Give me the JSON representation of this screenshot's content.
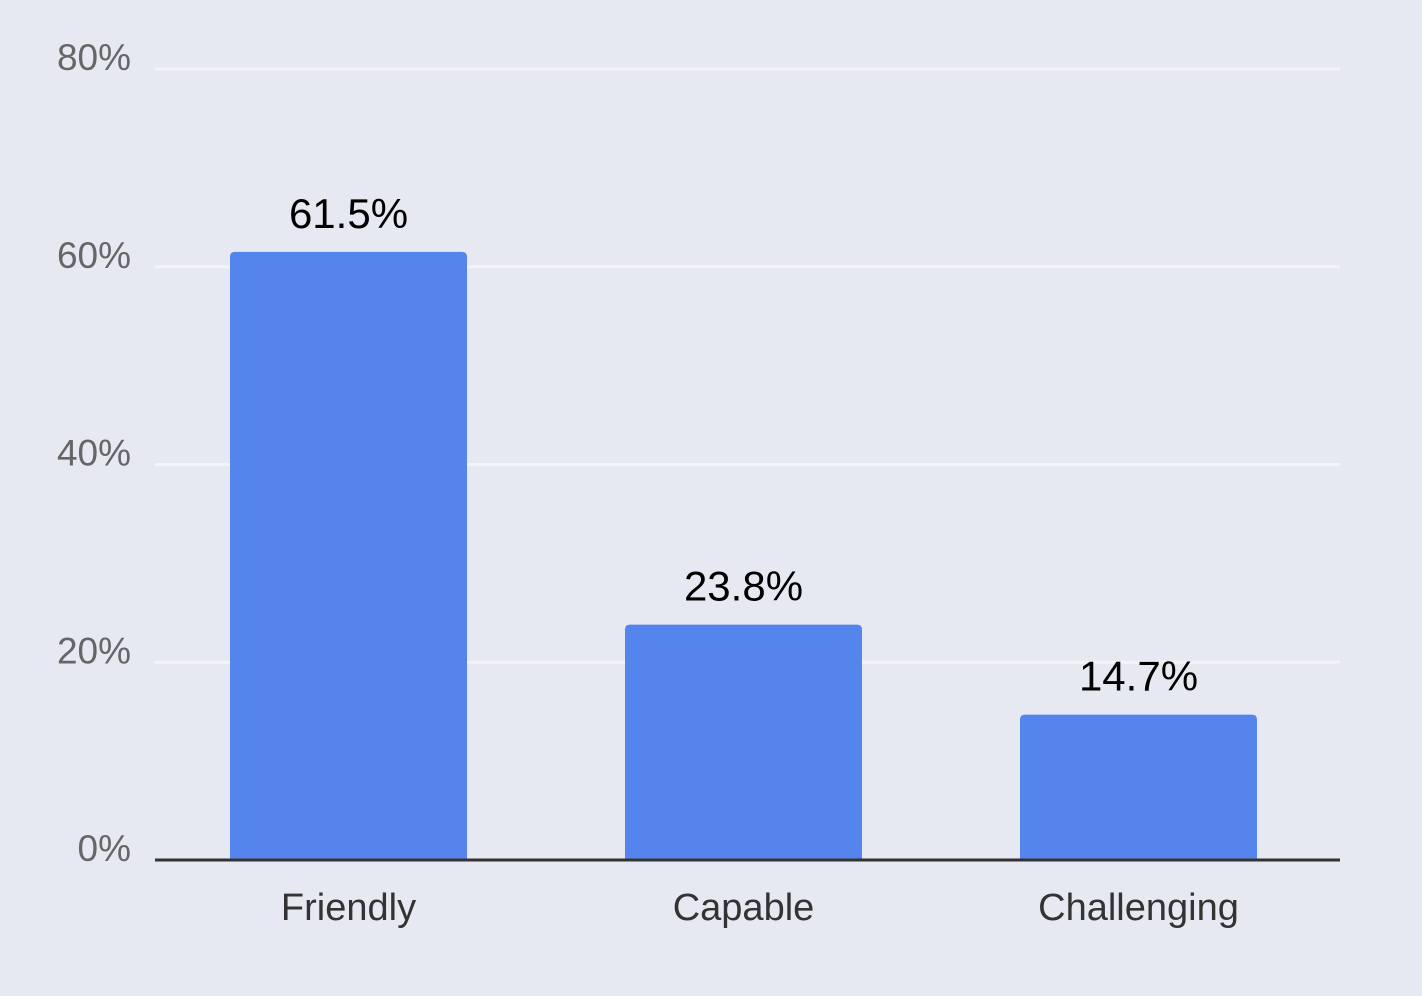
{
  "chart_data": {
    "type": "bar",
    "title": "",
    "xlabel": "",
    "ylabel": "",
    "categories": [
      "Friendly",
      "Capable",
      "Challenging"
    ],
    "values": [
      61.5,
      23.8,
      14.7
    ],
    "data_labels": [
      "61.5%",
      "23.8%",
      "14.7%"
    ],
    "ylim": [
      0,
      80
    ],
    "yticks": [
      0,
      20,
      40,
      60,
      80
    ],
    "ytick_labels": [
      "0%",
      "20%",
      "40%",
      "60%",
      "80%"
    ],
    "grid": true,
    "legend": "none",
    "colors": {
      "bar": "#5484ec",
      "background": "#e6e9f1",
      "grid": "#f3f4f7",
      "axis": "#333333"
    }
  }
}
